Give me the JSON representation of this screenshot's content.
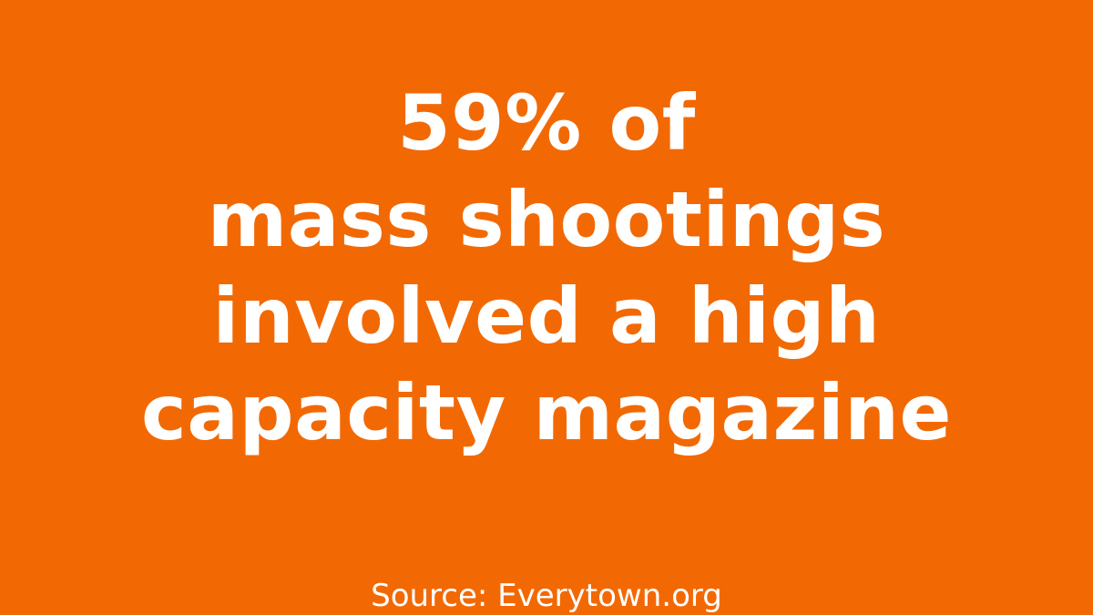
{
  "theme": {
    "background_color": "#f26904",
    "text_color": "#ffffff"
  },
  "headline": {
    "lines": [
      "59% of",
      "mass shootings",
      "involved a high",
      "capacity magazine"
    ]
  },
  "footer": {
    "source": "Source: Everytown.org"
  }
}
